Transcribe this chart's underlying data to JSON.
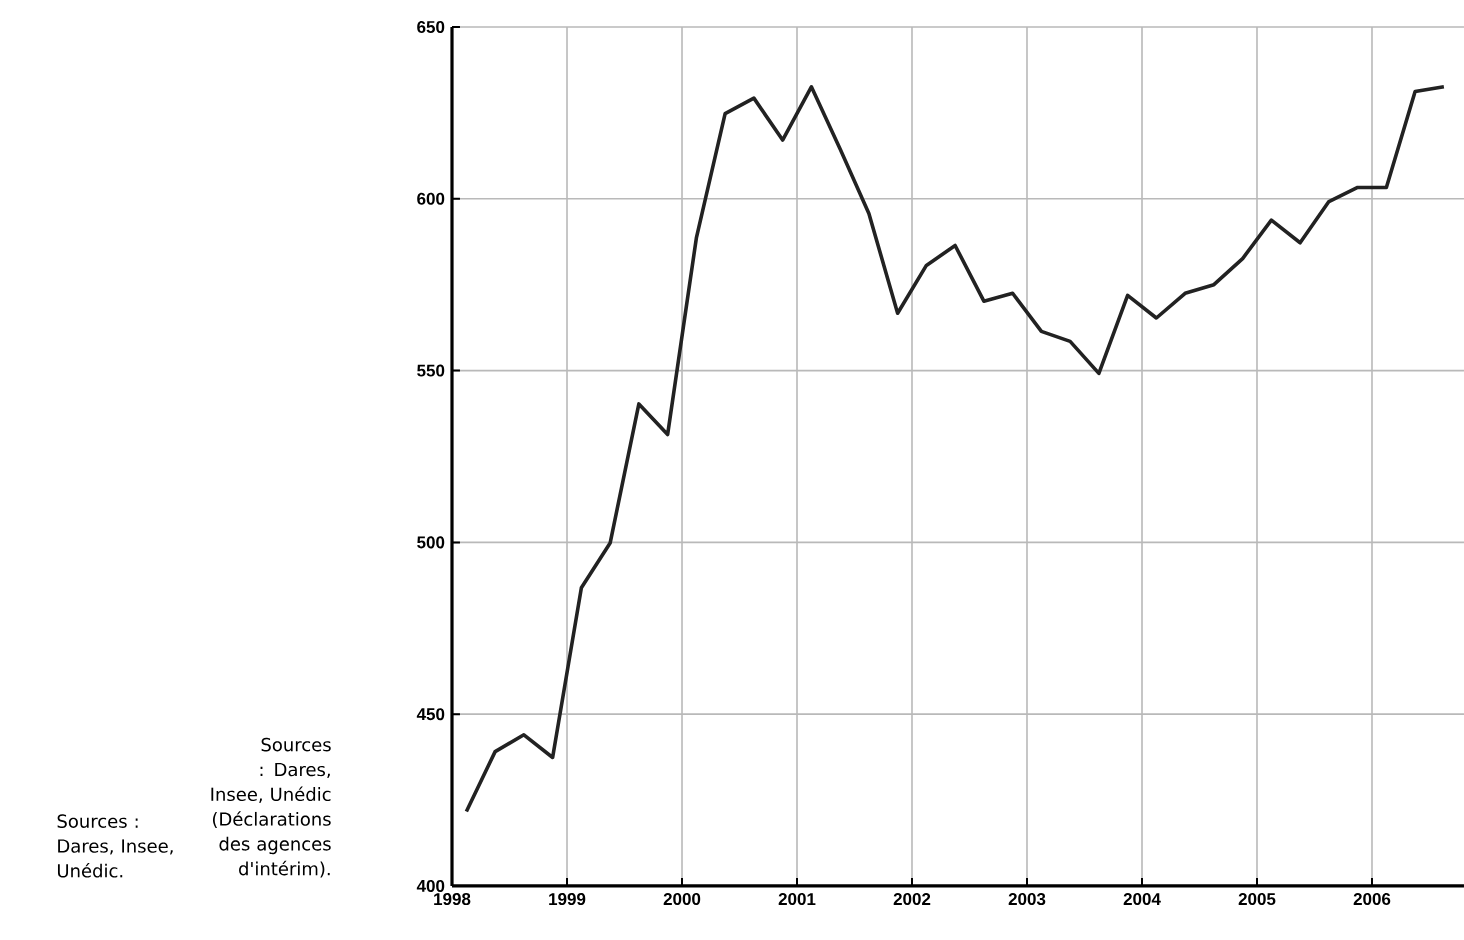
{
  "chart_data": {
    "type": "line",
    "x": [
      1998.125,
      1998.375,
      1998.625,
      1998.875,
      1999.125,
      1999.375,
      1999.625,
      1999.875,
      2000.125,
      2000.375,
      2000.625,
      2000.875,
      2001.125,
      2001.375,
      2001.625,
      2001.875,
      2002.125,
      2002.375,
      2002.625,
      2002.875,
      2003.125,
      2003.375,
      2003.625,
      2003.875,
      2004.125,
      2004.375,
      2004.625,
      2004.875,
      2005.125,
      2005.375,
      2005.625,
      2005.875,
      2006.125,
      2006.375,
      2006.625
    ],
    "series": [
      {
        "color": "#222222",
        "values": [
          421.7,
          439.1,
          444.0,
          437.4,
          486.8,
          499.8,
          540.3,
          531.4,
          588.6,
          624.8,
          629.3,
          617.1,
          632.6,
          614.5,
          595.7,
          566.7,
          580.6,
          586.4,
          570.2,
          572.5,
          561.4,
          558.5,
          549.2,
          571.9,
          565.3,
          572.5,
          575.0,
          582.6,
          593.8,
          587.2,
          599.2,
          603.3,
          603.3,
          631.2,
          632.6
        ]
      }
    ],
    "xlim": [
      1998,
      2006.8
    ],
    "xticks": [
      1998,
      1999,
      2000,
      2001,
      2002,
      2003,
      2004,
      2005,
      2006
    ],
    "ylim": [
      400,
      650
    ],
    "yticks": [
      400,
      450,
      500,
      550,
      600,
      650
    ],
    "grid": true,
    "marker": "none",
    "line_style": "solid",
    "annotations": [
      "Sources : Dares, Insee, Unédic.",
      "Sources : Dares, Insee, Unédic (Déclarations des agences d'intérim)."
    ]
  }
}
